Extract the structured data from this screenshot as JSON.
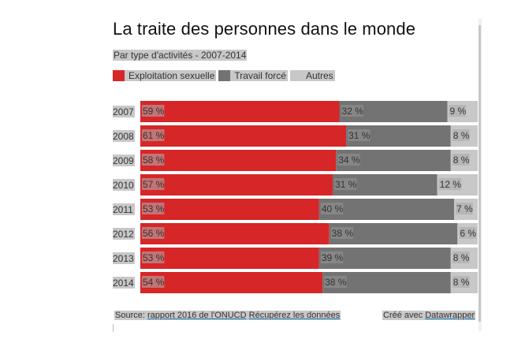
{
  "title": "La traite des personnes dans le monde",
  "subtitle": "Par type d'activités - 2007-2014",
  "legend": [
    {
      "label": "Exploitation sexuelle",
      "color": "#d62628"
    },
    {
      "label": "Travail forcé",
      "color": "#737373"
    },
    {
      "label": "Autres",
      "color": "#c8c8c8"
    }
  ],
  "footer": {
    "source_prefix": "Source: ",
    "source_link": "rapport 2016 de l'ONUCD",
    "data_link": "Récupérez les données",
    "credit_prefix": "Créé avec ",
    "credit_link": "Datawrapper"
  },
  "chart_data": {
    "type": "bar",
    "orientation": "horizontal",
    "stacked": true,
    "title": "La traite des personnes dans le monde",
    "subtitle": "Par type d'activités - 2007-2014",
    "categories": [
      "2007",
      "2008",
      "2009",
      "2010",
      "2011",
      "2012",
      "2013",
      "2014"
    ],
    "series": [
      {
        "name": "Exploitation sexuelle",
        "color": "#d62628",
        "values": [
          59,
          61,
          58,
          57,
          53,
          56,
          53,
          54
        ]
      },
      {
        "name": "Travail forcé",
        "color": "#737373",
        "values": [
          32,
          31,
          34,
          31,
          40,
          38,
          39,
          38
        ]
      },
      {
        "name": "Autres",
        "color": "#c8c8c8",
        "values": [
          9,
          8,
          8,
          12,
          7,
          6,
          8,
          8
        ]
      }
    ],
    "value_suffix": " %",
    "xlim": [
      0,
      100
    ],
    "xlabel": "",
    "ylabel": "",
    "grid": false,
    "legend_position": "top-left"
  }
}
